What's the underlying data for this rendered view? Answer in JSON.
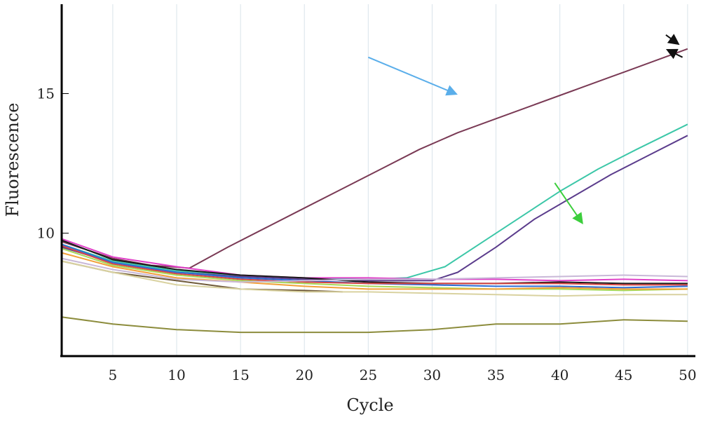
{
  "chart_data": {
    "type": "line",
    "title": "",
    "xlabel": "Cycle",
    "ylabel": "Fluorescence",
    "xlim": [
      1,
      50.5
    ],
    "ylim": [
      5.6,
      18.2
    ],
    "xticks": [
      5,
      10,
      15,
      20,
      25,
      30,
      35,
      40,
      45,
      50
    ],
    "yticks": [
      10,
      15
    ],
    "grid": "vertical",
    "series": [
      {
        "color": "#7a3a55",
        "x": [
          1,
          5,
          8,
          11,
          14,
          17,
          20,
          23,
          26,
          29,
          32,
          35,
          38,
          41,
          44,
          47,
          50
        ],
        "y": [
          9.7,
          9.1,
          8.85,
          8.75,
          9.5,
          10.2,
          10.9,
          11.6,
          12.3,
          13.0,
          13.6,
          14.1,
          14.6,
          15.1,
          15.6,
          16.1,
          16.6
        ]
      },
      {
        "color": "#3cc7a8",
        "x": [
          1,
          5,
          10,
          15,
          20,
          25,
          28,
          31,
          34,
          37,
          40,
          43,
          46,
          50
        ],
        "y": [
          9.6,
          9.0,
          8.65,
          8.5,
          8.35,
          8.35,
          8.4,
          8.8,
          9.7,
          10.6,
          11.5,
          12.3,
          13.0,
          13.9
        ]
      },
      {
        "color": "#5b3c8c",
        "x": [
          1,
          5,
          10,
          15,
          20,
          25,
          30,
          32,
          35,
          38,
          41,
          44,
          47,
          50
        ],
        "y": [
          9.5,
          8.95,
          8.6,
          8.45,
          8.35,
          8.3,
          8.3,
          8.6,
          9.5,
          10.5,
          11.3,
          12.1,
          12.8,
          13.5
        ]
      },
      {
        "color": "#e040c8",
        "x": [
          1,
          5,
          10,
          15,
          20,
          25,
          30,
          35,
          40,
          45,
          50
        ],
        "y": [
          9.8,
          9.15,
          8.8,
          8.5,
          8.4,
          8.4,
          8.35,
          8.35,
          8.3,
          8.35,
          8.3
        ]
      },
      {
        "color": "#1a1a1a",
        "x": [
          1,
          5,
          10,
          15,
          20,
          25,
          30,
          35,
          40,
          45,
          50
        ],
        "y": [
          9.75,
          9.05,
          8.7,
          8.5,
          8.4,
          8.25,
          8.2,
          8.2,
          8.25,
          8.2,
          8.2
        ]
      },
      {
        "color": "#2b6fd6",
        "x": [
          1,
          5,
          10,
          15,
          20,
          25,
          30,
          35,
          40,
          45,
          50
        ],
        "y": [
          9.6,
          8.95,
          8.6,
          8.4,
          8.3,
          8.2,
          8.15,
          8.1,
          8.1,
          8.05,
          8.1
        ]
      },
      {
        "color": "#d64545",
        "x": [
          1,
          5,
          10,
          15,
          20,
          25,
          30,
          35,
          40,
          45,
          50
        ],
        "y": [
          9.55,
          8.9,
          8.55,
          8.35,
          8.25,
          8.2,
          8.2,
          8.2,
          8.2,
          8.15,
          8.15
        ]
      },
      {
        "color": "#a7d95a",
        "x": [
          1,
          5,
          10,
          15,
          20,
          25,
          30,
          35,
          40,
          45,
          50
        ],
        "y": [
          9.45,
          8.85,
          8.5,
          8.3,
          8.2,
          8.1,
          8.05,
          8.0,
          8.0,
          7.95,
          8.0
        ]
      },
      {
        "color": "#f2a03a",
        "x": [
          1,
          5,
          10,
          15,
          20,
          25,
          30,
          35,
          40,
          45,
          50
        ],
        "y": [
          9.3,
          8.8,
          8.4,
          8.25,
          8.1,
          8.0,
          8.0,
          8.0,
          8.05,
          8.0,
          8.0
        ]
      },
      {
        "color": "#c9b8d8",
        "x": [
          1,
          5,
          10,
          15,
          20,
          25,
          30,
          35,
          40,
          45,
          50
        ],
        "y": [
          9.1,
          8.7,
          8.35,
          8.25,
          8.3,
          8.35,
          8.35,
          8.4,
          8.45,
          8.5,
          8.45
        ]
      },
      {
        "color": "#6f5a3a",
        "x": [
          1,
          5,
          10,
          15,
          20,
          23
        ],
        "y": [
          9.0,
          8.6,
          8.3,
          8.0,
          7.95,
          7.9
        ]
      },
      {
        "color": "#d9d2a0",
        "x": [
          1,
          5,
          10,
          15,
          20,
          25,
          30,
          35,
          40,
          45,
          50
        ],
        "y": [
          9.0,
          8.6,
          8.15,
          8.0,
          7.9,
          7.9,
          7.85,
          7.8,
          7.75,
          7.8,
          7.8
        ]
      },
      {
        "color": "#8c8c3c",
        "x": [
          1,
          5,
          10,
          15,
          20,
          25,
          30,
          35,
          40,
          45,
          50
        ],
        "y": [
          7.0,
          6.75,
          6.55,
          6.45,
          6.45,
          6.45,
          6.55,
          6.75,
          6.75,
          6.9,
          6.85
        ]
      }
    ],
    "annotations": [
      {
        "type": "arrow",
        "color": "#5aaeea",
        "from": [
          25.0,
          16.3
        ],
        "to": [
          31.8,
          15.0
        ]
      },
      {
        "type": "arrow",
        "color": "#3cce3c",
        "from": [
          39.6,
          11.8
        ],
        "to": [
          41.7,
          10.4
        ]
      },
      {
        "type": "arrow",
        "color": "#111111",
        "from": [
          48.3,
          17.1
        ],
        "to": [
          49.2,
          16.8
        ]
      },
      {
        "type": "arrow",
        "color": "#111111",
        "from": [
          49.6,
          16.3
        ],
        "to": [
          48.5,
          16.55
        ]
      }
    ]
  }
}
